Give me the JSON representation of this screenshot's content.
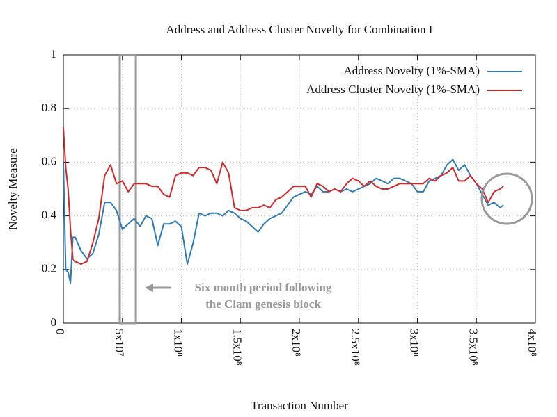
{
  "chart_data": {
    "type": "line",
    "title": "Address and Address Cluster Novelty for Combination I",
    "x_label": "Transaction Number",
    "y_label": "Novelty Measure",
    "xlim": [
      0,
      400000000
    ],
    "ylim": [
      0,
      1
    ],
    "xticks": [
      0,
      {
        "value": 50000000,
        "label": "5x10⁷"
      },
      {
        "value": 100000000,
        "label": "1x10⁸"
      },
      {
        "value": 150000000,
        "label": "1.5x10⁸"
      },
      {
        "value": 200000000,
        "label": "2x10⁸"
      },
      {
        "value": 250000000,
        "label": "2.5x10⁸"
      },
      {
        "value": 300000000,
        "label": "3x10⁸"
      },
      {
        "value": 350000000,
        "label": "3.5x10⁸"
      },
      {
        "value": 400000000,
        "label": "4x10⁸"
      }
    ],
    "yticks": [
      0,
      0.2,
      0.4,
      0.6,
      0.8,
      1
    ],
    "grid": true,
    "legend": "top-right",
    "highlight_span": [
      47800000,
      61400000
    ],
    "annotation": [
      "Six month period following",
      "the Clam genesis block"
    ],
    "x": [
      0,
      2000000,
      4000000,
      6000000,
      8000000,
      10000000,
      15000000,
      20000000,
      25000000,
      30000000,
      35000000,
      40000000,
      45000000,
      50000000,
      55000000,
      60000000,
      65000000,
      70000000,
      75000000,
      80000000,
      85000000,
      90000000,
      95000000,
      100000000,
      105000000,
      110000000,
      115000000,
      120000000,
      125000000,
      130000000,
      135000000,
      140000000,
      145000000,
      150000000,
      155000000,
      160000000,
      165000000,
      170000000,
      175000000,
      180000000,
      185000000,
      190000000,
      195000000,
      200000000,
      205000000,
      210000000,
      215000000,
      220000000,
      225000000,
      230000000,
      235000000,
      240000000,
      245000000,
      250000000,
      255000000,
      260000000,
      265000000,
      270000000,
      275000000,
      280000000,
      285000000,
      290000000,
      295000000,
      300000000,
      305000000,
      310000000,
      315000000,
      320000000,
      325000000,
      330000000,
      335000000,
      340000000,
      345000000,
      350000000,
      355000000,
      360000000,
      365000000,
      370000000,
      373000000
    ],
    "series": [
      {
        "name": "Address Novelty (1%-SMA)",
        "color": "#2b7bba",
        "values": [
          0.6,
          0.2,
          0.19,
          0.15,
          0.32,
          0.32,
          0.27,
          0.24,
          0.26,
          0.33,
          0.45,
          0.45,
          0.42,
          0.35,
          0.37,
          0.39,
          0.36,
          0.4,
          0.39,
          0.29,
          0.37,
          0.37,
          0.38,
          0.36,
          0.22,
          0.3,
          0.41,
          0.4,
          0.41,
          0.41,
          0.4,
          0.42,
          0.41,
          0.39,
          0.38,
          0.36,
          0.34,
          0.37,
          0.39,
          0.4,
          0.41,
          0.44,
          0.47,
          0.48,
          0.49,
          0.48,
          0.51,
          0.49,
          0.49,
          0.5,
          0.49,
          0.5,
          0.49,
          0.5,
          0.51,
          0.52,
          0.54,
          0.53,
          0.52,
          0.54,
          0.54,
          0.53,
          0.52,
          0.49,
          0.49,
          0.53,
          0.54,
          0.55,
          0.59,
          0.61,
          0.57,
          0.59,
          0.55,
          0.52,
          0.48,
          0.44,
          0.45,
          0.43,
          0.44
        ]
      },
      {
        "name": "Address Cluster Novelty (1%-SMA)",
        "color": "#d62728",
        "values": [
          0.73,
          0.58,
          0.5,
          0.35,
          0.24,
          0.23,
          0.22,
          0.23,
          0.3,
          0.39,
          0.55,
          0.59,
          0.52,
          0.53,
          0.49,
          0.52,
          0.52,
          0.52,
          0.51,
          0.51,
          0.48,
          0.47,
          0.55,
          0.56,
          0.56,
          0.55,
          0.58,
          0.58,
          0.57,
          0.52,
          0.6,
          0.56,
          0.43,
          0.42,
          0.42,
          0.43,
          0.43,
          0.44,
          0.43,
          0.46,
          0.47,
          0.49,
          0.51,
          0.51,
          0.51,
          0.47,
          0.52,
          0.51,
          0.49,
          0.5,
          0.49,
          0.52,
          0.54,
          0.53,
          0.51,
          0.53,
          0.51,
          0.5,
          0.5,
          0.51,
          0.52,
          0.52,
          0.52,
          0.52,
          0.52,
          0.54,
          0.53,
          0.55,
          0.56,
          0.58,
          0.53,
          0.53,
          0.55,
          0.52,
          0.5,
          0.45,
          0.49,
          0.5,
          0.51
        ]
      }
    ]
  }
}
